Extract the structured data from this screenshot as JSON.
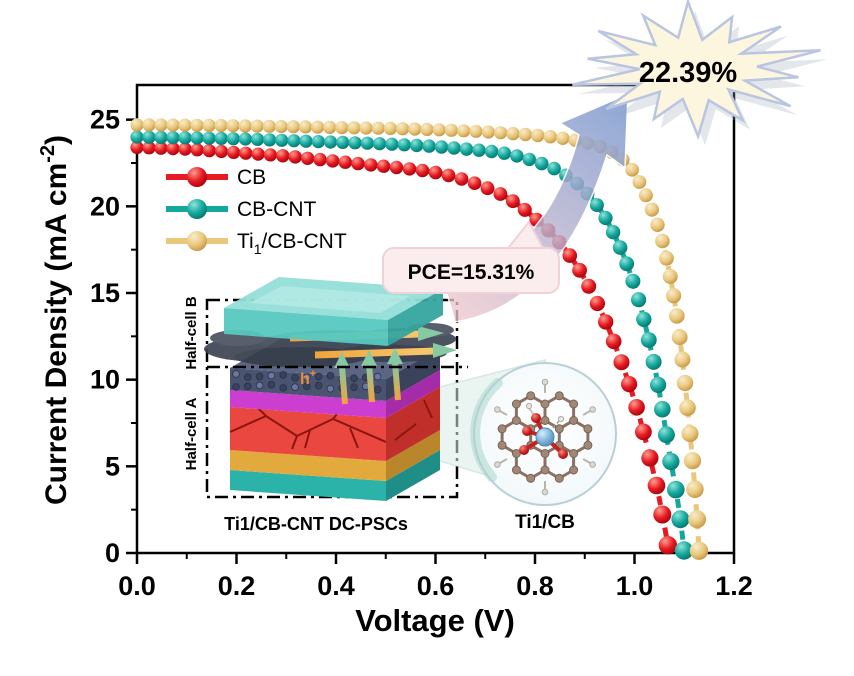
{
  "figure": {
    "xlabel": "Voltage (V)",
    "ylabel_main": "Current Density (mA cm",
    "ylabel_sup": "-2",
    "ylabel_close": ")"
  },
  "annotations": {
    "efficiency_badge": "22.39%",
    "pce_bubble": "PCE=15.31%"
  },
  "legend": {
    "items": [
      {
        "pre": "CB",
        "sub": "",
        "post": ""
      },
      {
        "pre": "CB-CNT",
        "sub": "",
        "post": ""
      },
      {
        "pre": "Ti",
        "sub": "1",
        "post": "/CB-CNT"
      }
    ]
  },
  "inset": {
    "half_cell_b": "Half-cell B",
    "half_cell_a": "Half-cell A",
    "hole_label_base": "h",
    "hole_label_sup": "+",
    "caption_device": "Ti1/CB-CNT DC-PSCs",
    "caption_molecule": "Ti1/CB"
  },
  "colors": {
    "cb_red": "#e51a22",
    "cbcnt_teal": "#14a79d",
    "ti_yellow": "#e9c87e",
    "starburst_fill": "#fdf6de",
    "starburst_border": "#b9c5e1",
    "pce_bubble_fill": "#fbecee",
    "pce_bubble_border": "#f1d2d6",
    "arrow_tail_pink": "#ecc6cc",
    "arrow_head_blue": "#7f9bd0"
  },
  "chart_data": {
    "type": "line",
    "title": "",
    "xlabel": "Voltage (V)",
    "ylabel": "Current Density (mA cm-2)",
    "xlim": [
      0,
      1.2
    ],
    "ylim": [
      0,
      27
    ],
    "xticks": [
      "0.0",
      "0.2",
      "0.4",
      "0.6",
      "0.8",
      "1.0",
      "1.2"
    ],
    "yticks": [
      "0",
      "5",
      "10",
      "15",
      "20",
      "25"
    ],
    "grid": false,
    "legend_position": "upper-left-inside",
    "marker_style": "bead-spheres-with-dashes",
    "series": [
      {
        "name": "CB",
        "color": "#e51a22",
        "color_light": "#ff9d8e",
        "color_dark": "#9f0008",
        "jsc_mA_cm2": 23.4,
        "voc_V": 1.07,
        "pce_label": "PCE=15.31%",
        "x": [
          0.0,
          0.05,
          0.1,
          0.15,
          0.2,
          0.25,
          0.3,
          0.35,
          0.4,
          0.45,
          0.5,
          0.55,
          0.6,
          0.65,
          0.7,
          0.75,
          0.8,
          0.85,
          0.9,
          0.95,
          1.0,
          1.03,
          1.05,
          1.07
        ],
        "y": [
          23.4,
          23.35,
          23.3,
          23.2,
          23.1,
          23.0,
          22.9,
          22.75,
          22.6,
          22.45,
          22.3,
          22.15,
          21.95,
          21.6,
          21.1,
          20.4,
          19.3,
          17.9,
          15.8,
          12.8,
          8.8,
          5.6,
          3.1,
          0.0
        ]
      },
      {
        "name": "CB-CNT",
        "color": "#14a79d",
        "color_light": "#8fe3da",
        "color_dark": "#056f68",
        "jsc_mA_cm2": 24.0,
        "voc_V": 1.1,
        "x": [
          0.0,
          0.1,
          0.2,
          0.3,
          0.4,
          0.5,
          0.6,
          0.7,
          0.75,
          0.8,
          0.85,
          0.9,
          0.95,
          1.0,
          1.04,
          1.07,
          1.09,
          1.1
        ],
        "y": [
          24.0,
          23.95,
          23.9,
          23.8,
          23.7,
          23.6,
          23.45,
          23.2,
          23.0,
          22.6,
          22.0,
          20.9,
          18.9,
          15.4,
          10.8,
          5.8,
          2.4,
          0.0
        ]
      },
      {
        "name": "Ti1/CB-CNT",
        "color": "#e9c87e",
        "color_light": "#f9ecca",
        "color_dark": "#c2913c",
        "jsc_mA_cm2": 24.7,
        "voc_V": 1.13,
        "pce_label": "22.39%",
        "x": [
          0.0,
          0.1,
          0.2,
          0.3,
          0.4,
          0.5,
          0.6,
          0.7,
          0.8,
          0.85,
          0.9,
          0.95,
          1.0,
          1.05,
          1.08,
          1.1,
          1.12,
          1.13
        ],
        "y": [
          24.7,
          24.68,
          24.65,
          24.6,
          24.55,
          24.5,
          24.42,
          24.3,
          24.1,
          23.95,
          23.7,
          23.2,
          21.9,
          18.6,
          14.6,
          10.2,
          4.2,
          0.0
        ]
      }
    ]
  }
}
